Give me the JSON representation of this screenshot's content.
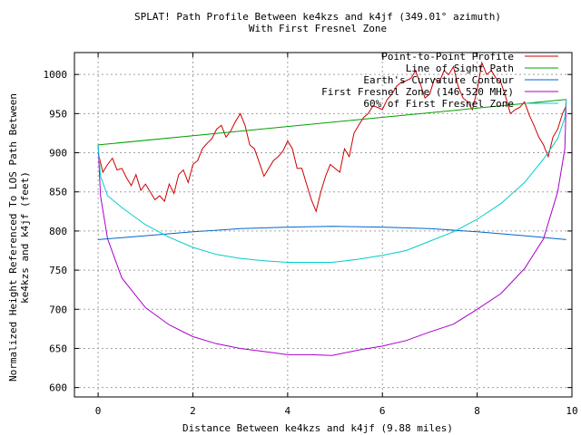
{
  "chart_data": {
    "type": "line",
    "title": "SPLAT! Path Profile Between ke4kzs and k4jf (349.01° azimuth)",
    "subtitle": "With First Fresnel Zone",
    "xlabel": "Distance Between ke4kzs and k4jf (9.88 miles)",
    "ylabel_line1": "Normalized Height Referenced To LOS Path Between",
    "ylabel_line2": "ke4kzs and k4jf (feet)",
    "xlim": [
      -0.5,
      10
    ],
    "ylim": [
      588,
      1028
    ],
    "x_ticks": [
      0,
      2,
      4,
      6,
      8,
      10
    ],
    "y_ticks": [
      600,
      650,
      700,
      750,
      800,
      850,
      900,
      950,
      1000
    ],
    "grid": true,
    "legend_position": "top-right",
    "series": [
      {
        "name": "Point-to-Point Profile",
        "color": "#cc0000",
        "x": [
          0,
          0.1,
          0.2,
          0.3,
          0.4,
          0.5,
          0.6,
          0.7,
          0.8,
          0.9,
          1.0,
          1.1,
          1.2,
          1.3,
          1.4,
          1.5,
          1.6,
          1.7,
          1.8,
          1.9,
          2.0,
          2.1,
          2.2,
          2.3,
          2.4,
          2.5,
          2.6,
          2.7,
          2.8,
          2.9,
          3.0,
          3.1,
          3.2,
          3.3,
          3.4,
          3.5,
          3.6,
          3.7,
          3.8,
          3.9,
          4.0,
          4.1,
          4.2,
          4.3,
          4.4,
          4.5,
          4.6,
          4.7,
          4.8,
          4.9,
          5.0,
          5.1,
          5.2,
          5.3,
          5.4,
          5.5,
          5.6,
          5.7,
          5.8,
          5.9,
          6.0,
          6.1,
          6.2,
          6.3,
          6.4,
          6.5,
          6.6,
          6.7,
          6.8,
          6.9,
          7.0,
          7.1,
          7.2,
          7.3,
          7.4,
          7.5,
          7.6,
          7.7,
          7.8,
          7.9,
          8.0,
          8.1,
          8.2,
          8.3,
          8.4,
          8.5,
          8.6,
          8.7,
          8.8,
          8.9,
          9.0,
          9.1,
          9.2,
          9.3,
          9.4,
          9.5,
          9.6,
          9.7,
          9.8,
          9.88
        ],
        "y": [
          900,
          875,
          885,
          893,
          878,
          880,
          868,
          858,
          872,
          852,
          860,
          850,
          840,
          845,
          838,
          860,
          848,
          872,
          878,
          862,
          885,
          890,
          905,
          912,
          918,
          930,
          935,
          920,
          928,
          940,
          950,
          935,
          910,
          905,
          888,
          870,
          880,
          890,
          895,
          902,
          915,
          905,
          880,
          880,
          860,
          840,
          825,
          850,
          870,
          885,
          880,
          875,
          905,
          895,
          925,
          935,
          945,
          950,
          960,
          958,
          955,
          968,
          975,
          985,
          990,
          992,
          995,
          1005,
          988,
          970,
          975,
          995,
          990,
          1005,
          1000,
          1010,
          985,
          970,
          965,
          955,
          980,
          1015,
          1000,
          1005,
          995,
          990,
          972,
          950,
          955,
          958,
          965,
          948,
          935,
          920,
          910,
          895,
          920,
          930,
          950,
          960
        ]
      },
      {
        "name": "Line of Sight Path",
        "color": "#00a000",
        "x": [
          0,
          9.88
        ],
        "y": [
          910,
          968
        ]
      },
      {
        "name": "Earth's Curvature Contour",
        "color": "#0066cc",
        "x": [
          0,
          1,
          2,
          3,
          4,
          4.94,
          6,
          7,
          8,
          9,
          9.88
        ],
        "y": [
          789,
          794,
          799,
          803,
          805,
          806,
          805,
          803,
          799,
          794,
          789
        ]
      },
      {
        "name": "First Fresnel Zone (146.520 MHz)",
        "color": "#aa00cc",
        "x": [
          0,
          0.05,
          0.2,
          0.5,
          1,
          1.5,
          2,
          2.5,
          3,
          3.5,
          4,
          4.5,
          4.94,
          5.5,
          6,
          6.5,
          7,
          7.5,
          8,
          8.5,
          9,
          9.4,
          9.7,
          9.85,
          9.88
        ],
        "y": [
          910,
          845,
          790,
          740,
          702,
          680,
          665,
          656,
          650,
          646,
          642,
          642,
          641,
          648,
          653,
          660,
          671,
          681,
          700,
          720,
          752,
          790,
          850,
          905,
          968
        ]
      },
      {
        "name": "60% of First Fresnel Zone",
        "color": "#00cccc",
        "x": [
          0,
          0.05,
          0.2,
          0.5,
          1,
          1.5,
          2,
          2.5,
          3,
          3.5,
          4,
          4.5,
          4.94,
          5.5,
          6,
          6.5,
          7,
          7.5,
          8,
          8.5,
          9,
          9.4,
          9.7,
          9.85,
          9.88
        ],
        "y": [
          910,
          870,
          845,
          830,
          808,
          792,
          779,
          770,
          765,
          762,
          760,
          760,
          760,
          764,
          769,
          775,
          787,
          799,
          815,
          835,
          862,
          892,
          918,
          945,
          968
        ]
      }
    ]
  }
}
